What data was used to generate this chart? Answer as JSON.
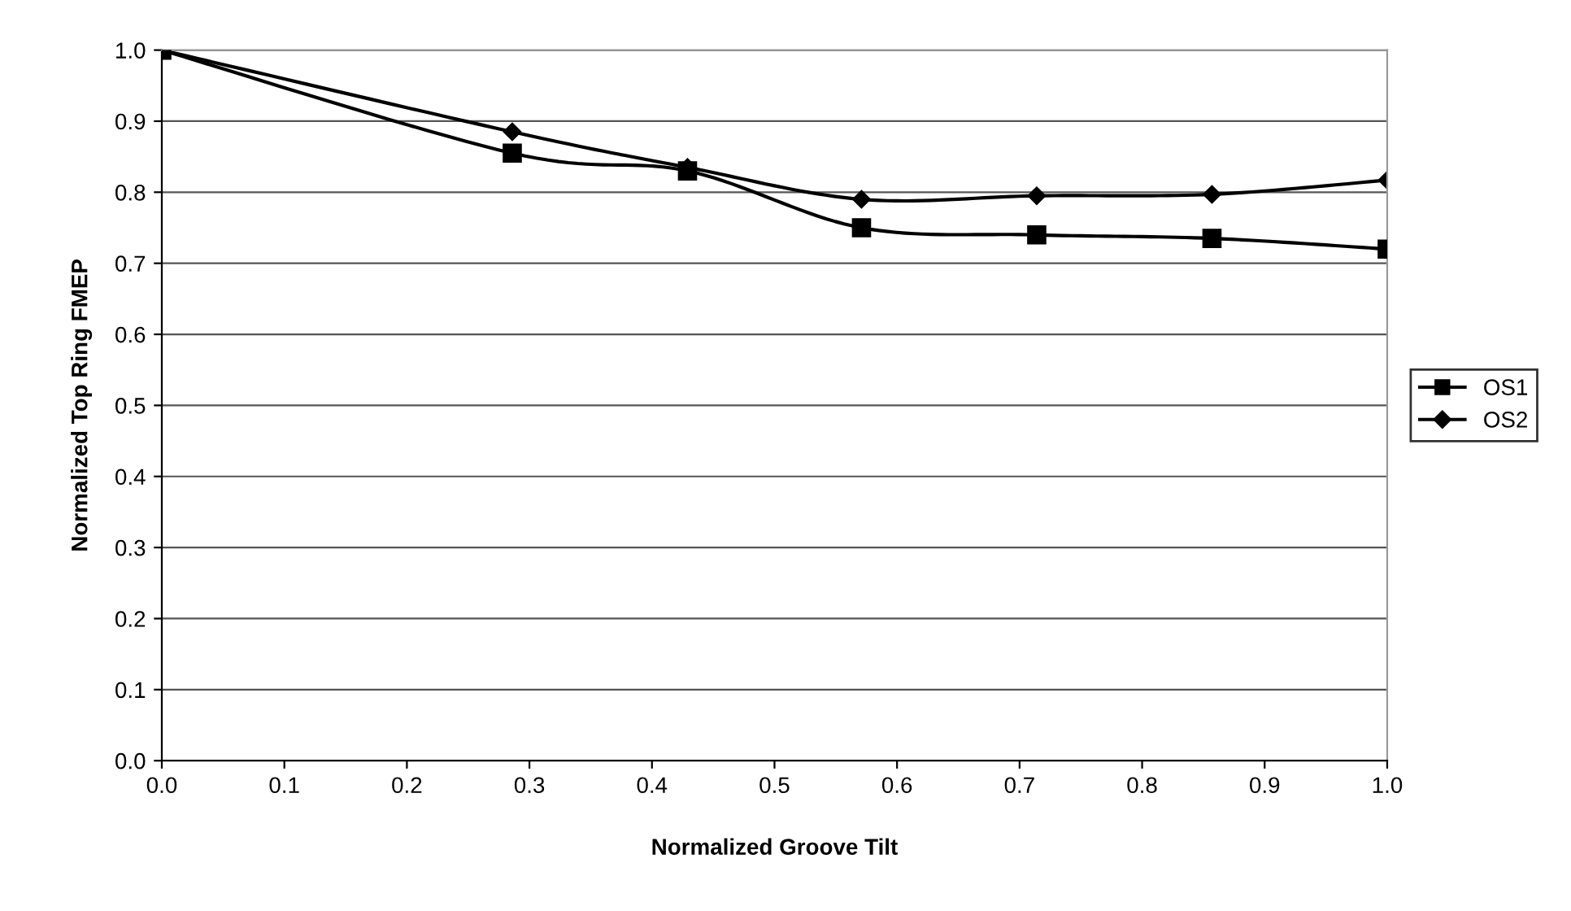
{
  "chart_data": {
    "type": "line",
    "xlabel": "Normalized Groove Tilt",
    "ylabel": "Normalized Top Ring FMEP",
    "x": [
      0,
      0.286,
      0.429,
      0.571,
      0.714,
      0.857,
      1.0
    ],
    "series": [
      {
        "name": "OS1",
        "color": "#000000",
        "marker": "square",
        "values": [
          1.0,
          0.855,
          0.83,
          0.75,
          0.74,
          0.735,
          0.72
        ]
      },
      {
        "name": "OS2",
        "color": "#000000",
        "marker": "diamond",
        "values": [
          1.0,
          0.885,
          0.835,
          0.79,
          0.795,
          0.797,
          0.817
        ]
      }
    ],
    "xlim": [
      0,
      1.0
    ],
    "xticks": [
      {
        "value": 0,
        "label": "0.0"
      },
      0.1,
      0.2,
      0.3,
      0.4,
      0.5,
      0.6,
      0.7,
      0.8,
      0.9,
      {
        "value": 1.0,
        "label": "1.0"
      }
    ],
    "ylim": [
      0,
      1.0
    ],
    "yticks": [
      {
        "value": 0,
        "label": "0.0"
      },
      0.1,
      0.2,
      0.3,
      0.4,
      0.5,
      0.6,
      0.7,
      0.8,
      0.9,
      {
        "value": 1.0,
        "label": "1.0"
      }
    ],
    "grid": "y",
    "legend": "right",
    "line_style": "solid"
  }
}
